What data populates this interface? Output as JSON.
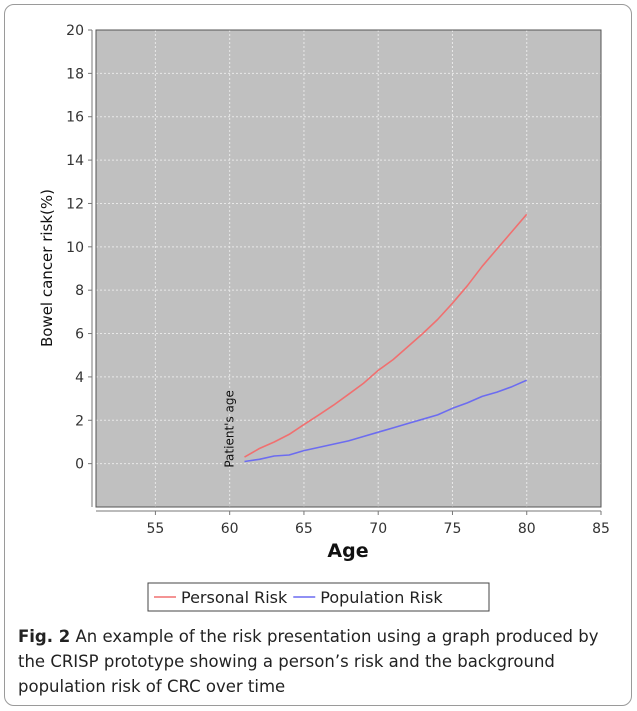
{
  "chart_data": {
    "type": "line",
    "xlabel": "Age",
    "ylabel": "Bowel cancer risk(%)",
    "xlim": [
      51,
      85
    ],
    "ylim": [
      -2,
      20
    ],
    "x_ticks": [
      55,
      60,
      65,
      70,
      75,
      80,
      85
    ],
    "y_ticks": [
      0,
      2,
      4,
      6,
      8,
      10,
      12,
      14,
      16,
      18,
      20
    ],
    "grid": true,
    "legend_position": "bottom",
    "series": [
      {
        "name": "Personal Risk",
        "color": "#f07070",
        "x": [
          61,
          62,
          63,
          64,
          65,
          66,
          67,
          68,
          69,
          70,
          71,
          72,
          73,
          74,
          75,
          76,
          77,
          78,
          79,
          80
        ],
        "y": [
          0.3,
          0.7,
          1.0,
          1.35,
          1.8,
          2.25,
          2.7,
          3.2,
          3.7,
          4.3,
          4.8,
          5.4,
          6.0,
          6.65,
          7.4,
          8.2,
          9.1,
          9.9,
          10.7,
          11.5
        ]
      },
      {
        "name": "Population Risk",
        "color": "#6c6cf0",
        "x": [
          61,
          62,
          63,
          64,
          65,
          66,
          67,
          68,
          69,
          70,
          71,
          72,
          73,
          74,
          75,
          76,
          77,
          78,
          79,
          80
        ],
        "y": [
          0.1,
          0.2,
          0.35,
          0.4,
          0.6,
          0.75,
          0.9,
          1.05,
          1.25,
          1.45,
          1.65,
          1.85,
          2.05,
          2.25,
          2.55,
          2.8,
          3.1,
          3.3,
          3.55,
          3.85
        ]
      }
    ],
    "annotations": [
      {
        "text": "Patient's age",
        "x": 60
      }
    ]
  },
  "caption": {
    "label": "Fig. 2",
    "text": " An example of the risk presentation using a graph produced by the CRISP prototype showing a person’s risk and the background population risk of CRC over time"
  },
  "colors": {
    "plot_background": "#c0c0c0",
    "grid": "#e8e8e8"
  }
}
